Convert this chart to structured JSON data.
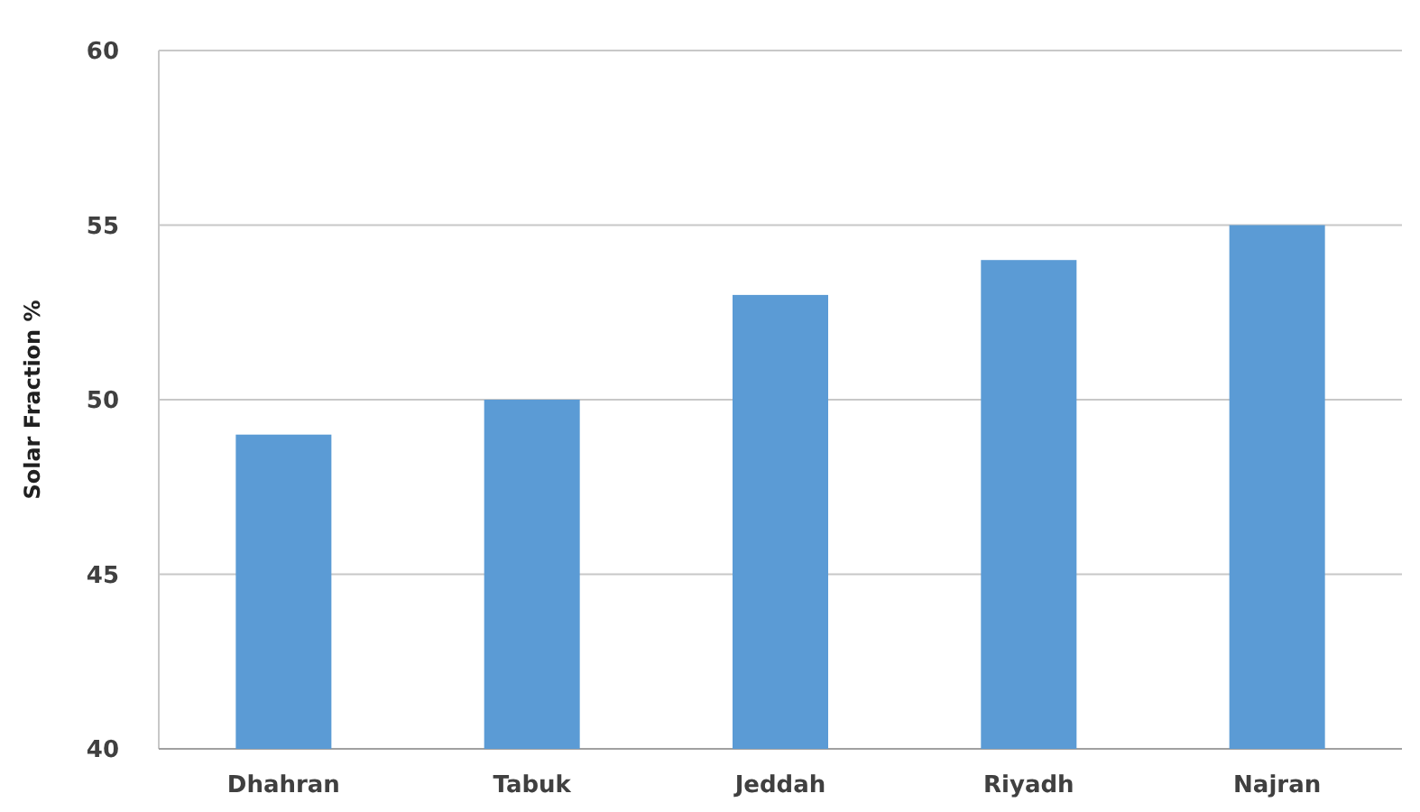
{
  "chart_data": {
    "type": "bar",
    "ylabel": "Solar Fraction %",
    "categories": [
      "Dhahran",
      "Tabuk",
      "Jeddah",
      "Riyadh",
      "Najran"
    ],
    "values": [
      49,
      50,
      53,
      54,
      55
    ],
    "color": "#5b9bd5",
    "ylim": [
      40,
      60
    ],
    "yticks": [
      40,
      45,
      50,
      55,
      60
    ],
    "grid": "y"
  }
}
